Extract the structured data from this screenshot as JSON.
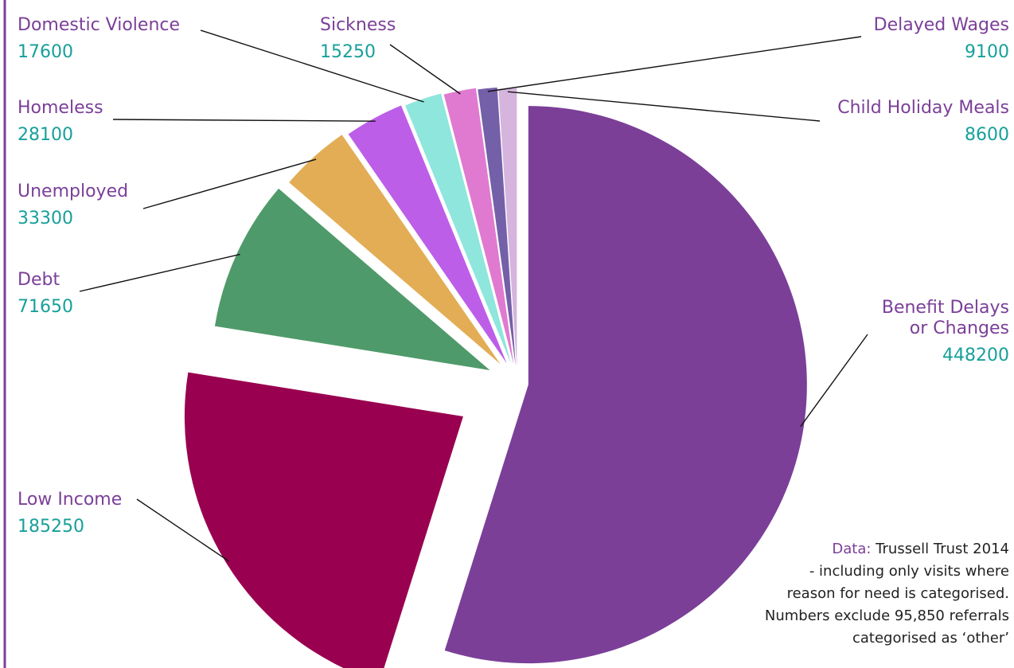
{
  "chart_data": {
    "type": "pie",
    "categories": [
      "Benefit Delays or Changes",
      "Low Income",
      "Debt",
      "Unemployed",
      "Homeless",
      "Domestic Violence",
      "Sickness",
      "Delayed Wages",
      "Child Holiday Meals"
    ],
    "label_lines": [
      [
        "Benefit Delays",
        "or Changes"
      ],
      [
        "Low Income"
      ],
      [
        "Debt"
      ],
      [
        "Unemployed"
      ],
      [
        "Homeless"
      ],
      [
        "Domestic Violence"
      ],
      [
        "Sickness"
      ],
      [
        "Delayed Wages"
      ],
      [
        "Child Holiday Meals"
      ]
    ],
    "values": [
      448200,
      185250,
      71650,
      33300,
      28100,
      17600,
      15250,
      9100,
      8600
    ],
    "colors": [
      "#7b3f98",
      "#990050",
      "#4f9a6a",
      "#e3ad55",
      "#bd5ee8",
      "#8ee6dc",
      "#e07ad0",
      "#7460a8",
      "#d5b4dd"
    ],
    "label_color": "#7b3f98",
    "value_color": "#17a09a",
    "note": {
      "key": "Data:",
      "lines": [
        "Trussell Trust 2014",
        "- including only visits where",
        "reason for need is categorised.",
        "Numbers exclude 95,850 referrals",
        "categorised as ‘other’"
      ]
    }
  }
}
